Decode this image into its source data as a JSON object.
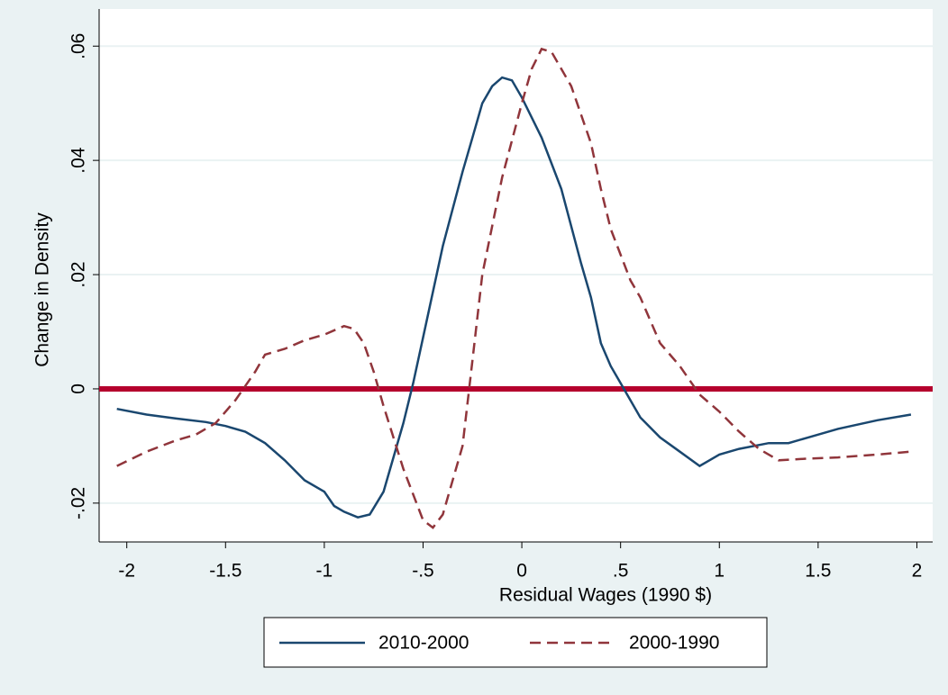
{
  "chart_data": {
    "type": "line",
    "x_label": "Residual Wages (1990 $)",
    "y_label": "Change in Density",
    "xlim": [
      -2.14,
      2.08
    ],
    "ylim": [
      -0.0268,
      0.0665
    ],
    "xticks": [
      -2,
      {
        "value": -1.5,
        "label": "-1.5"
      },
      -1,
      {
        "value": -0.5,
        "label": "-.5"
      },
      0,
      {
        "value": 0.5,
        "label": ".5"
      },
      1,
      1.5,
      2
    ],
    "yticks": [
      {
        "value": -0.02,
        "label": "-.02"
      },
      0,
      {
        "value": 0.02,
        "label": ".02"
      },
      {
        "value": 0.04,
        "label": ".04"
      },
      {
        "value": 0.06,
        "label": ".06"
      }
    ],
    "grid": true,
    "hline": {
      "value": 0,
      "color": "#b5002d"
    },
    "legend": "bottom",
    "series": [
      {
        "name": "2010-2000",
        "color": "#1a476f",
        "dash": false,
        "x": [
          -2.05,
          -1.9,
          -1.75,
          -1.6,
          -1.5,
          -1.4,
          -1.3,
          -1.2,
          -1.1,
          -1.0,
          -0.95,
          -0.9,
          -0.83,
          -0.77,
          -0.7,
          -0.65,
          -0.6,
          -0.55,
          -0.5,
          -0.4,
          -0.3,
          -0.25,
          -0.2,
          -0.15,
          -0.1,
          -0.05,
          0,
          0.1,
          0.2,
          0.3,
          0.35,
          0.4,
          0.45,
          0.5,
          0.55,
          0.6,
          0.7,
          0.8,
          0.9,
          0.95,
          1.0,
          1.1,
          1.25,
          1.35,
          1.45,
          1.6,
          1.8,
          1.97
        ],
        "values": [
          -0.0035,
          -0.0045,
          -0.0052,
          -0.0058,
          -0.0065,
          -0.0075,
          -0.0095,
          -0.0125,
          -0.016,
          -0.018,
          -0.0205,
          -0.0215,
          -0.0225,
          -0.022,
          -0.018,
          -0.012,
          -0.006,
          0.001,
          0.009,
          0.025,
          0.038,
          0.044,
          0.05,
          0.053,
          0.0545,
          0.054,
          0.051,
          0.044,
          0.035,
          0.022,
          0.016,
          0.008,
          0.004,
          0.001,
          -0.002,
          -0.005,
          -0.0085,
          -0.011,
          -0.0135,
          -0.0125,
          -0.0115,
          -0.0105,
          -0.0095,
          -0.0095,
          -0.0085,
          -0.007,
          -0.0055,
          -0.0045
        ]
      },
      {
        "name": "2000-1990",
        "color": "#90353b",
        "dash": true,
        "x": [
          -2.05,
          -1.9,
          -1.75,
          -1.65,
          -1.55,
          -1.45,
          -1.35,
          -1.3,
          -1.2,
          -1.1,
          -1.0,
          -0.9,
          -0.85,
          -0.8,
          -0.75,
          -0.7,
          -0.6,
          -0.5,
          -0.45,
          -0.4,
          -0.3,
          -0.25,
          -0.2,
          -0.1,
          0,
          0.05,
          0.1,
          0.15,
          0.25,
          0.35,
          0.4,
          0.45,
          0.55,
          0.6,
          0.7,
          0.8,
          0.9,
          1.0,
          1.1,
          1.2,
          1.3,
          1.45,
          1.6,
          1.8,
          1.97
        ],
        "values": [
          -0.0135,
          -0.011,
          -0.009,
          -0.008,
          -0.006,
          -0.002,
          0.003,
          0.006,
          0.007,
          0.0085,
          0.0095,
          0.011,
          0.0105,
          0.008,
          0.003,
          -0.003,
          -0.014,
          -0.023,
          -0.0243,
          -0.022,
          -0.01,
          0.005,
          0.02,
          0.037,
          0.05,
          0.056,
          0.0595,
          0.059,
          0.053,
          0.043,
          0.035,
          0.028,
          0.019,
          0.016,
          0.008,
          0.004,
          -0.001,
          -0.004,
          -0.0075,
          -0.0105,
          -0.0125,
          -0.0122,
          -0.012,
          -0.0115,
          -0.011
        ]
      }
    ]
  }
}
